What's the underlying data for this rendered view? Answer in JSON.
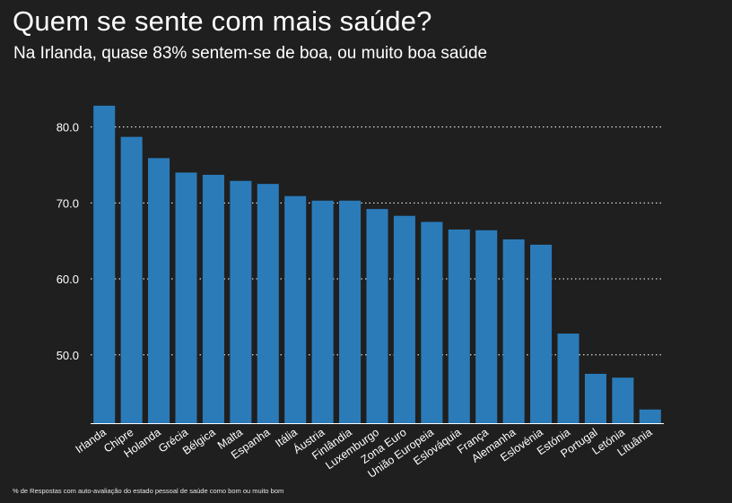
{
  "header": {
    "title": "Quem se sente com mais saúde?",
    "subtitle": "Na Irlanda, quase 83% sentem-se de boa, ou muito boa saúde"
  },
  "footnote": "% de Respostas com auto-avaliação do estado pessoal de saúde como bom ou muito bom",
  "colors": {
    "bar": "#2b7bb9",
    "background": "#1f1f1f",
    "grid": "#ffffff",
    "text": "#ffffff"
  },
  "chart_data": {
    "type": "bar",
    "title": "Quem se sente com mais saúde?",
    "subtitle": "Na Irlanda, quase 83% sentem-se de boa, ou muito boa saúde",
    "xlabel": "",
    "ylabel": "",
    "categories": [
      "Irlanda",
      "Chipre",
      "Holanda",
      "Grécia",
      "Bélgica",
      "Malta",
      "Espanha",
      "Itália",
      "Áustria",
      "Finlândia",
      "Luxemburgo",
      "Zona Euro",
      "União Europeia",
      "Eslováquia",
      "França",
      "Alemanha",
      "Eslovénia",
      "Estónia",
      "Portugal",
      "Letónia",
      "Lituânia"
    ],
    "values": [
      82.8,
      78.7,
      75.9,
      74.0,
      73.7,
      72.9,
      72.5,
      70.9,
      70.3,
      70.3,
      69.2,
      68.3,
      67.5,
      66.5,
      66.4,
      65.2,
      64.5,
      52.8,
      47.5,
      47.0,
      42.8
    ],
    "yticks": [
      "50.0",
      "60.0",
      "70.0",
      "80.0"
    ],
    "ylim": [
      41.0,
      85.5
    ],
    "grid": "horizontal-dotted",
    "legend": "none"
  }
}
